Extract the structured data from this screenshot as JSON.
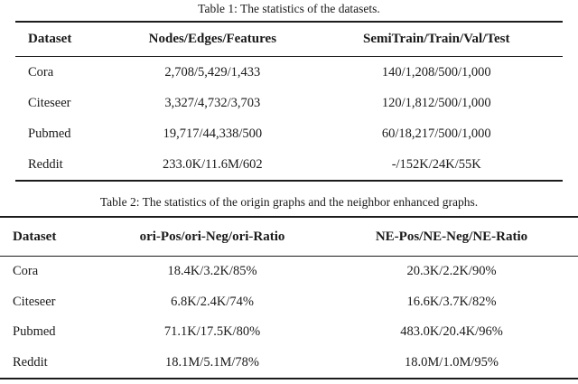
{
  "page": {
    "background_color": "#ffffff",
    "text_color": "#1a1a1a",
    "rule_color": "#1c1c1c"
  },
  "table1": {
    "caption": "Table 1: The statistics of the datasets.",
    "headers": [
      "Dataset",
      "Nodes/Edges/Features",
      "SemiTrain/Train/Val/Test"
    ],
    "rows": [
      [
        "Cora",
        "2,708/5,429/1,433",
        "140/1,208/500/1,000"
      ],
      [
        "Citeseer",
        "3,327/4,732/3,703",
        "120/1,812/500/1,000"
      ],
      [
        "Pubmed",
        "19,717/44,338/500",
        "60/18,217/500/1,000"
      ],
      [
        "Reddit",
        "233.0K/11.6M/602",
        "-/152K/24K/55K"
      ]
    ]
  },
  "table2": {
    "caption": "Table 2: The statistics of the origin graphs and the neighbor enhanced graphs.",
    "headers": [
      "Dataset",
      "ori-Pos/ori-Neg/ori-Ratio",
      "NE-Pos/NE-Neg/NE-Ratio"
    ],
    "rows": [
      [
        "Cora",
        "18.4K/3.2K/85%",
        "20.3K/2.2K/90%"
      ],
      [
        "Citeseer",
        "6.8K/2.4K/74%",
        "16.6K/3.7K/82%"
      ],
      [
        "Pubmed",
        "71.1K/17.5K/80%",
        "483.0K/20.4K/96%"
      ],
      [
        "Reddit",
        "18.1M/5.1M/78%",
        "18.0M/1.0M/95%"
      ]
    ]
  }
}
